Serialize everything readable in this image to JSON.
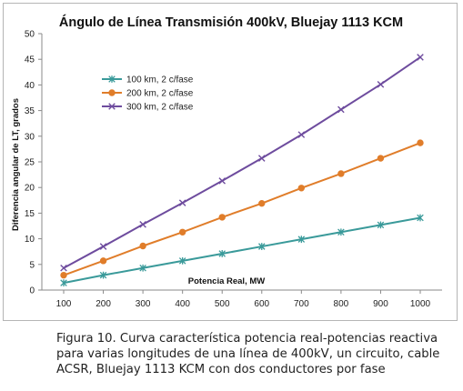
{
  "chart_data": {
    "type": "line",
    "title": "Ángulo de Línea  Transmisión 400kV, Bluejay 1113 KCM",
    "xlabel": "Potencia Real, MW",
    "ylabel": "Diferencia angular de LT, grados",
    "x": [
      100,
      200,
      300,
      400,
      500,
      600,
      700,
      800,
      900,
      1000
    ],
    "x_ticks": [
      "100",
      "200",
      "300",
      "400",
      "500",
      "600",
      "700",
      "800",
      "900",
      "1000"
    ],
    "ylim": [
      0,
      50
    ],
    "y_ticks": [
      "0",
      "5",
      "10",
      "15",
      "20",
      "25",
      "30",
      "35",
      "40",
      "45",
      "50"
    ],
    "grid": false,
    "legend_position": "upper-left",
    "series": [
      {
        "name": "100 km, 2 c/fase",
        "color": "#3a9a9a",
        "marker": "asterisk",
        "values": [
          1.4,
          2.9,
          4.3,
          5.7,
          7.1,
          8.5,
          9.9,
          11.3,
          12.7,
          14.1
        ]
      },
      {
        "name": "200 km, 2 c/fase",
        "color": "#e07d2a",
        "marker": "circle",
        "values": [
          2.9,
          5.7,
          8.6,
          11.3,
          14.2,
          16.9,
          19.9,
          22.7,
          25.7,
          28.7
        ]
      },
      {
        "name": "300 km, 2 c/fase",
        "color": "#6e4c9e",
        "marker": "x",
        "values": [
          4.3,
          8.5,
          12.8,
          17.0,
          21.3,
          25.7,
          30.3,
          35.2,
          40.1,
          45.4
        ]
      }
    ]
  },
  "caption": "Figura 10. Curva característica potencia real-potencias reactiva para varias longitudes de una línea de 400kV, un circuito, cable ACSR, Bluejay 1113 KCM con dos conductores por fase"
}
